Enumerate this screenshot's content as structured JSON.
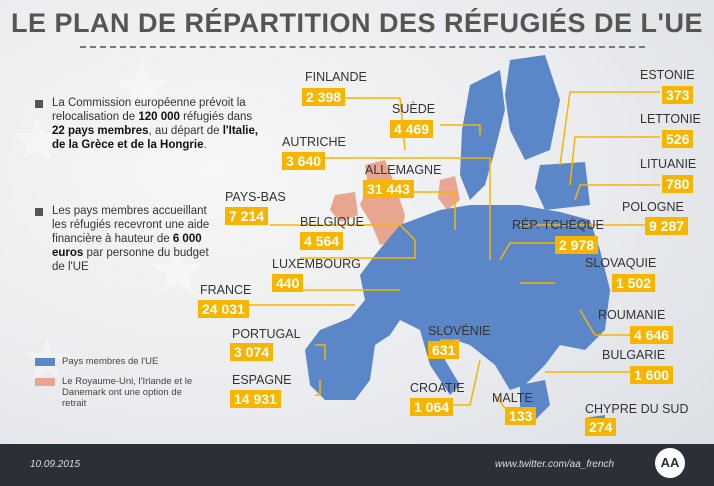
{
  "title": "LE PLAN DE RÉPARTITION DES RÉFUGIÉS DE L'UE",
  "colors": {
    "member": "#5b86c8",
    "optout": "#e8a58f",
    "value_box": "#f7b500",
    "footer": "#2b2f38"
  },
  "intro": {
    "p1": "La Commission européenne prévoit la relocalisation de 120 000 réfugiés dans 22 pays membres, au départ de l'Italie, de la Grèce et de la Hongrie.",
    "p2": "Les pays membres accueillant les réfugiés recevront une aide financière à hauteur de 6 000 euros par personne du budget de l'UE"
  },
  "legend": {
    "members": "Pays membres de l'UE",
    "optout": "Le Royaume-Uni, l'Irlande et le Danemark ont une option de retrait"
  },
  "countries": [
    {
      "name": "FINLANDE",
      "value": "2 398"
    },
    {
      "name": "SUÈDE",
      "value": "4 469"
    },
    {
      "name": "AUTRICHE",
      "value": "3 640"
    },
    {
      "name": "ALLEMAGNE",
      "value": "31 443"
    },
    {
      "name": "PAYS-BAS",
      "value": "7 214"
    },
    {
      "name": "BELGIQUE",
      "value": "4 564"
    },
    {
      "name": "LUXEMBOURG",
      "value": "440"
    },
    {
      "name": "FRANCE",
      "value": "24 031"
    },
    {
      "name": "PORTUGAL",
      "value": "3 074"
    },
    {
      "name": "ESPAGNE",
      "value": "14 931"
    },
    {
      "name": "SLOVÉNIE",
      "value": "631"
    },
    {
      "name": "CROATIE",
      "value": "1 064"
    },
    {
      "name": "MALTE",
      "value": "133"
    },
    {
      "name": "CHYPRE DU SUD",
      "value": "274"
    },
    {
      "name": "ESTONIE",
      "value": "373"
    },
    {
      "name": "LETTONIE",
      "value": "526"
    },
    {
      "name": "LITUANIE",
      "value": "780"
    },
    {
      "name": "POLOGNE",
      "value": "9 287"
    },
    {
      "name": "RÉP. TCHÈQUE",
      "value": "2 978"
    },
    {
      "name": "SLOVAQUIE",
      "value": "1 502"
    },
    {
      "name": "ROUMANIE",
      "value": "4 646"
    },
    {
      "name": "BULGARIE",
      "value": "1 600"
    }
  ],
  "footer": {
    "date": "10.09.2015",
    "twitter": "www.twitter.com/aa_french",
    "logo": "AA"
  }
}
